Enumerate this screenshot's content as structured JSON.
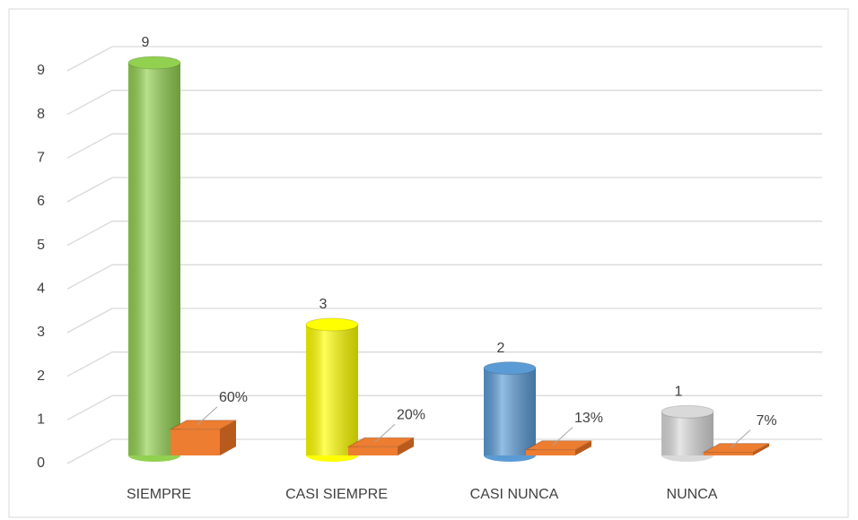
{
  "chart_data": {
    "type": "bar3d",
    "categories": [
      "SIEMPRE",
      "CASI SIEMPRE",
      "CASI NUNCA",
      "NUNCA"
    ],
    "series": [
      {
        "values": [
          9,
          3,
          2,
          1
        ],
        "colors": [
          "#92d050",
          "#ffff00",
          "#5b9bd5",
          "#d9d9d9"
        ]
      },
      {
        "values": [
          0.6,
          0.2,
          0.13,
          0.07
        ],
        "value_labels": [
          "60%",
          "20%",
          "13%",
          "7%"
        ],
        "color": "#ed7d31"
      }
    ],
    "ylim": [
      0,
      9
    ],
    "yticks": [
      0,
      1,
      2,
      3,
      4,
      5,
      6,
      7,
      8,
      9
    ],
    "grid": true
  }
}
